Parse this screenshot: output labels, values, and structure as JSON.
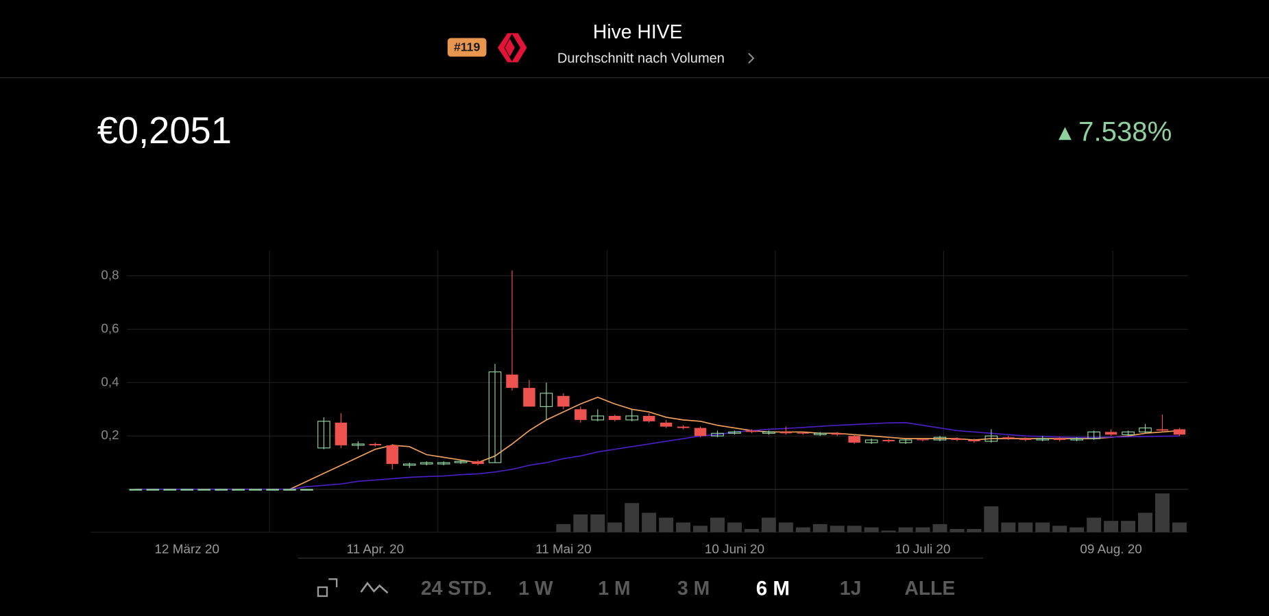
{
  "header": {
    "rank": "#119",
    "title": "Hive HIVE",
    "subtitle": "Durchschnitt nach Volumen"
  },
  "price": "€0,2051",
  "change": "7.538%",
  "ranges": [
    "24 STD.",
    "1 W",
    "1 M",
    "3 M",
    "6 M",
    "1J",
    "ALLE"
  ],
  "selected_range": 4,
  "chart_data": {
    "type": "candlestick",
    "categories": [
      null,
      null,
      null,
      "12 März 20",
      null,
      null,
      null,
      null,
      null,
      null,
      null,
      null,
      null,
      null,
      "11 Apr. 20",
      null,
      null,
      null,
      null,
      null,
      null,
      null,
      null,
      null,
      null,
      "11 Mai 20",
      null,
      null,
      null,
      null,
      null,
      null,
      null,
      null,
      null,
      "10 Juni 20",
      null,
      null,
      null,
      null,
      null,
      null,
      null,
      null,
      null,
      null,
      "10 Juli 20",
      null,
      null,
      null,
      null,
      null,
      null,
      null,
      null,
      null,
      null,
      "09 Aug. 20",
      null,
      null,
      null,
      null
    ],
    "open": [
      0,
      0,
      0,
      0,
      0,
      0,
      0,
      0,
      0,
      0,
      0,
      0.155,
      0.25,
      0.165,
      0.17,
      0.165,
      0.09,
      0.095,
      0.095,
      0.1,
      0.105,
      0.1,
      0.43,
      0.38,
      0.31,
      0.35,
      0.3,
      0.26,
      0.275,
      0.26,
      0.275,
      0.25,
      0.235,
      0.23,
      0.2,
      0.21,
      0.22,
      0.21,
      0.215,
      0.212,
      0.205,
      0.21,
      0.2,
      0.175,
      0.185,
      0.175,
      0.187,
      0.185,
      0.19,
      0.185,
      0.18,
      0.195,
      0.19,
      0.185,
      0.19,
      0.185,
      0.19,
      0.215,
      0.205,
      0.215,
      0.225,
      0.225
    ],
    "high": [
      0,
      0,
      0,
      0,
      0,
      0,
      0,
      0,
      0,
      0,
      0,
      0.27,
      0.285,
      0.18,
      0.175,
      0.17,
      0.1,
      0.105,
      0.105,
      0.11,
      0.11,
      0.47,
      0.82,
      0.41,
      0.4,
      0.36,
      0.31,
      0.3,
      0.28,
      0.3,
      0.285,
      0.26,
      0.24,
      0.235,
      0.22,
      0.22,
      0.225,
      0.22,
      0.235,
      0.215,
      0.215,
      0.215,
      0.205,
      0.19,
      0.19,
      0.19,
      0.19,
      0.2,
      0.195,
      0.19,
      0.225,
      0.2,
      0.195,
      0.2,
      0.195,
      0.195,
      0.22,
      0.225,
      0.22,
      0.245,
      0.28,
      0.23
    ],
    "low": [
      0,
      0,
      0,
      0,
      0,
      0,
      0,
      0,
      0,
      0,
      0,
      0.15,
      0.155,
      0.15,
      0.16,
      0.075,
      0.08,
      0.09,
      0.09,
      0.095,
      0.09,
      0.1,
      0.37,
      0.31,
      0.26,
      0.3,
      0.25,
      0.255,
      0.255,
      0.255,
      0.25,
      0.23,
      0.225,
      0.195,
      0.195,
      0.205,
      0.21,
      0.205,
      0.205,
      0.205,
      0.2,
      0.2,
      0.17,
      0.17,
      0.175,
      0.17,
      0.18,
      0.18,
      0.18,
      0.175,
      0.175,
      0.185,
      0.18,
      0.18,
      0.18,
      0.18,
      0.185,
      0.2,
      0.2,
      0.21,
      0.215,
      0.2
    ],
    "close": [
      0,
      0,
      0,
      0,
      0,
      0,
      0,
      0,
      0,
      0,
      0,
      0.255,
      0.165,
      0.17,
      0.165,
      0.095,
      0.095,
      0.1,
      0.1,
      0.105,
      0.095,
      0.44,
      0.38,
      0.31,
      0.36,
      0.31,
      0.26,
      0.275,
      0.26,
      0.275,
      0.255,
      0.235,
      0.23,
      0.2,
      0.21,
      0.215,
      0.215,
      0.215,
      0.21,
      0.21,
      0.21,
      0.205,
      0.175,
      0.185,
      0.18,
      0.185,
      0.185,
      0.195,
      0.185,
      0.18,
      0.2,
      0.19,
      0.185,
      0.19,
      0.185,
      0.19,
      0.215,
      0.205,
      0.215,
      0.23,
      0.22,
      0.205
    ],
    "up_color": "#8fd19e",
    "down_color": "#ef5350",
    "lines": [
      {
        "color": "#f5a25d",
        "values": [
          0,
          0,
          0,
          0,
          0,
          0,
          0,
          0,
          0,
          0,
          0.03,
          0.06,
          0.09,
          0.12,
          0.15,
          0.165,
          0.16,
          0.13,
          0.12,
          0.11,
          0.1,
          0.125,
          0.17,
          0.22,
          0.26,
          0.29,
          0.32,
          0.345,
          0.32,
          0.3,
          0.29,
          0.27,
          0.26,
          0.255,
          0.24,
          0.23,
          0.22,
          0.215,
          0.215,
          0.215,
          0.21,
          0.21,
          0.205,
          0.2,
          0.195,
          0.19,
          0.19,
          0.19,
          0.19,
          0.185,
          0.19,
          0.19,
          0.19,
          0.19,
          0.19,
          0.19,
          0.19,
          0.195,
          0.2,
          0.21,
          0.215,
          0.22
        ]
      },
      {
        "color": "#4b1fc4",
        "values": [
          0,
          0,
          0,
          0,
          0,
          0,
          0,
          0,
          0,
          0,
          0.01,
          0.015,
          0.02,
          0.03,
          0.035,
          0.04,
          0.045,
          0.048,
          0.05,
          0.055,
          0.058,
          0.065,
          0.075,
          0.09,
          0.1,
          0.115,
          0.125,
          0.14,
          0.15,
          0.16,
          0.17,
          0.18,
          0.19,
          0.2,
          0.205,
          0.215,
          0.22,
          0.225,
          0.228,
          0.232,
          0.236,
          0.24,
          0.243,
          0.246,
          0.249,
          0.25,
          0.24,
          0.23,
          0.22,
          0.215,
          0.21,
          0.205,
          0.2,
          0.198,
          0.196,
          0.195,
          0.195,
          0.196,
          0.197,
          0.198,
          0.199,
          0.2
        ]
      }
    ],
    "volume": {
      "color": "#3a3a3a",
      "ylim": [
        0,
        53
      ],
      "values": [
        null,
        null,
        null,
        null,
        null,
        null,
        null,
        null,
        null,
        null,
        null,
        null,
        null,
        null,
        null,
        null,
        null,
        null,
        null,
        null,
        null,
        null,
        null,
        null,
        null,
        10,
        22,
        22,
        12,
        36,
        24,
        18,
        12,
        8,
        18,
        12,
        4,
        18,
        12,
        6,
        10,
        8,
        8,
        6,
        2,
        6,
        6,
        10,
        4,
        4,
        32,
        12,
        12,
        12,
        8,
        6,
        18,
        14,
        14,
        24,
        48,
        12
      ]
    },
    "ylim": [
      0,
      0.9
    ],
    "yticks": [
      {
        "value": 0.2,
        "label": "0,2"
      },
      {
        "value": 0.4,
        "label": "0,4"
      },
      {
        "value": 0.6,
        "label": "0,6"
      },
      {
        "value": 0.8,
        "label": "0,8"
      }
    ],
    "grid": true
  }
}
